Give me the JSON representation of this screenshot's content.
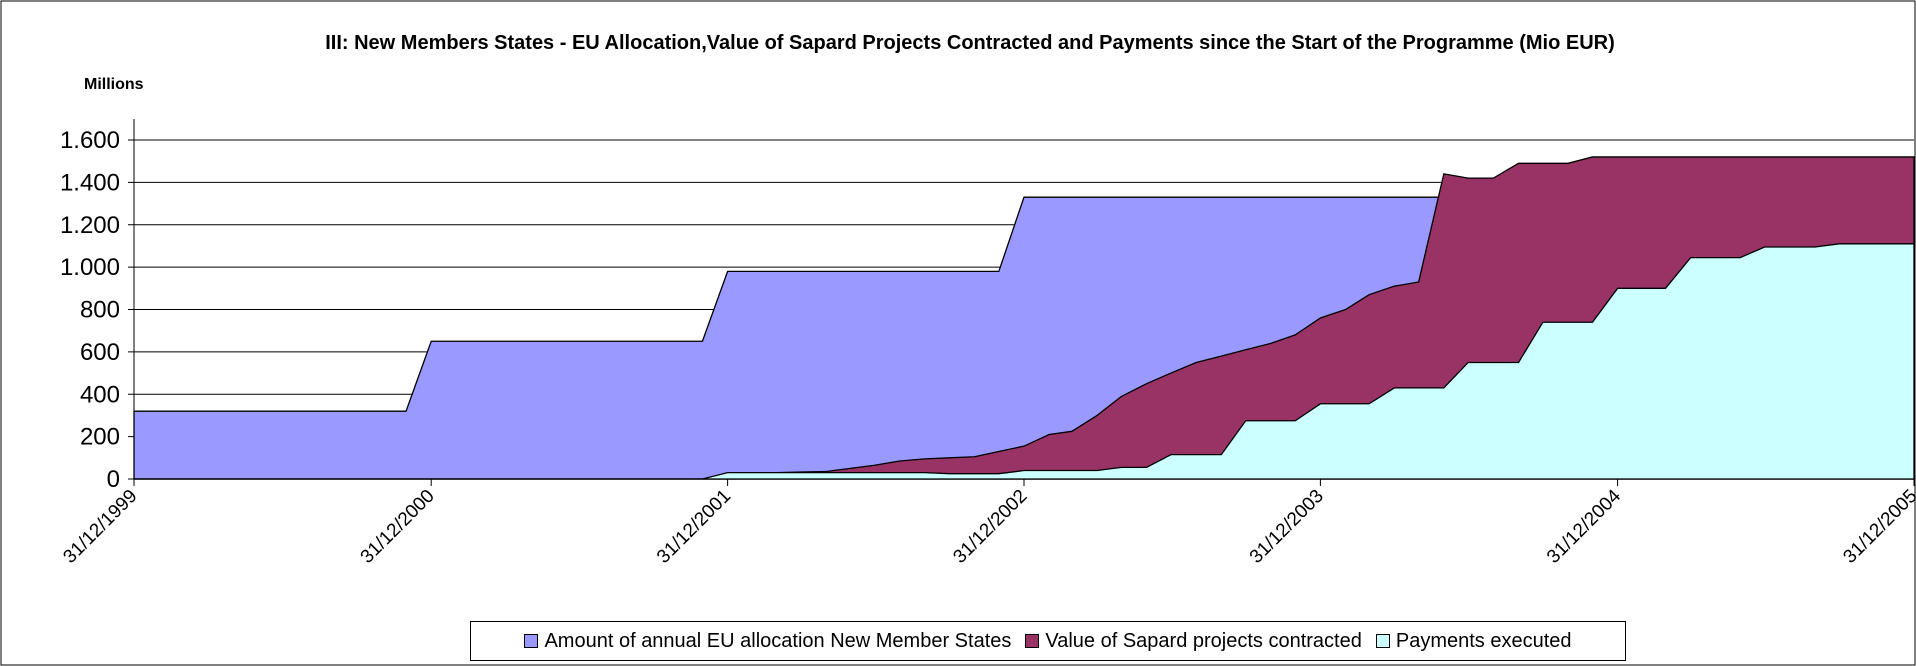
{
  "chart_data": {
    "type": "area",
    "title": "III: New Members States - EU Allocation,Value of Sapard Projects Contracted and Payments since the Start of the Programme (Mio EUR)",
    "y_label": "Millions",
    "x": [
      "31/12/1999",
      "31/01/2000",
      "29/02/2000",
      "31/03/2000",
      "30/04/2000",
      "31/05/2000",
      "30/06/2000",
      "31/07/2000",
      "31/08/2000",
      "30/09/2000",
      "31/10/2000",
      "30/11/2000",
      "31/12/2000",
      "31/01/2001",
      "28/02/2001",
      "31/03/2001",
      "30/04/2001",
      "31/05/2001",
      "30/06/2001",
      "31/07/2001",
      "31/08/2001",
      "30/09/2001",
      "31/10/2001",
      "30/11/2001",
      "31/12/2001",
      "31/01/2002",
      "28/02/2002",
      "31/03/2002",
      "30/04/2002",
      "31/05/2002",
      "30/06/2002",
      "31/07/2002",
      "31/08/2002",
      "30/09/2002",
      "31/10/2002",
      "30/11/2002",
      "31/12/2002",
      "31/01/2003",
      "28/02/2003",
      "31/03/2003",
      "30/04/2003",
      "31/05/2003",
      "30/06/2003",
      "31/07/2003",
      "31/08/2003",
      "30/09/2003",
      "31/10/2003",
      "30/11/2003",
      "31/12/2003",
      "31/01/2004",
      "29/02/2004",
      "31/03/2004",
      "30/04/2004",
      "31/05/2004",
      "30/06/2004",
      "31/07/2004",
      "31/08/2004",
      "30/09/2004",
      "31/10/2004",
      "30/11/2004",
      "31/12/2004",
      "31/01/2005",
      "28/02/2005",
      "31/03/2005",
      "30/04/2005",
      "31/05/2005",
      "30/06/2005",
      "31/07/2005",
      "31/08/2005",
      "30/09/2005",
      "31/10/2005",
      "30/11/2005",
      "31/12/2005"
    ],
    "series": [
      {
        "name": "Amount of annual EU allocation New Member States",
        "color": "#9999ff",
        "values": [
          320,
          320,
          320,
          320,
          320,
          320,
          320,
          320,
          320,
          320,
          320,
          320,
          650,
          650,
          650,
          650,
          650,
          650,
          650,
          650,
          650,
          650,
          650,
          650,
          980,
          980,
          980,
          980,
          980,
          980,
          980,
          980,
          980,
          980,
          980,
          980,
          1330,
          1330,
          1330,
          1330,
          1330,
          1330,
          1330,
          1330,
          1330,
          1330,
          1330,
          1330,
          1330,
          1330,
          1330,
          1330,
          1330,
          1330,
          1330,
          1330,
          1330,
          1330,
          1330,
          1330,
          1330,
          1330,
          1330,
          1330,
          1330,
          1330,
          1330,
          1330,
          1330,
          1330,
          1330,
          1330,
          1330
        ]
      },
      {
        "name": "Value of Sapard projects contracted",
        "color": "#993366",
        "values": [
          0,
          0,
          0,
          0,
          0,
          0,
          0,
          0,
          0,
          0,
          0,
          0,
          0,
          0,
          0,
          0,
          0,
          0,
          0,
          0,
          0,
          0,
          0,
          0,
          5,
          30,
          30,
          33,
          35,
          50,
          65,
          85,
          95,
          100,
          105,
          130,
          155,
          210,
          225,
          300,
          390,
          450,
          500,
          550,
          580,
          610,
          640,
          680,
          760,
          800,
          870,
          910,
          930,
          1440,
          1420,
          1420,
          1490,
          1490,
          1490,
          1520,
          1520,
          1520,
          1520,
          1520,
          1520,
          1520,
          1520,
          1520,
          1520,
          1520,
          1520,
          1520,
          1520
        ]
      },
      {
        "name": "Payments executed",
        "color": "#ccffff",
        "values": [
          0,
          0,
          0,
          0,
          0,
          0,
          0,
          0,
          0,
          0,
          0,
          0,
          0,
          0,
          0,
          0,
          0,
          0,
          0,
          0,
          0,
          0,
          0,
          0,
          30,
          30,
          30,
          30,
          30,
          30,
          30,
          30,
          30,
          25,
          25,
          25,
          40,
          40,
          40,
          40,
          55,
          55,
          115,
          115,
          115,
          275,
          275,
          275,
          355,
          355,
          355,
          430,
          430,
          430,
          550,
          550,
          550,
          740,
          740,
          740,
          900,
          900,
          900,
          1045,
          1045,
          1045,
          1095,
          1095,
          1095,
          1110,
          1110,
          1110,
          1110
        ]
      }
    ],
    "xlim": [
      "31/12/1999",
      "31/12/2005"
    ],
    "xticks": [
      "31/12/1999",
      "31/12/2000",
      "31/12/2001",
      "31/12/2002",
      "31/12/2003",
      "31/12/2004",
      "31/12/2005"
    ],
    "ylim": [
      0,
      1600
    ],
    "yticks": [
      {
        "value": 0,
        "label": "0"
      },
      {
        "value": 200,
        "label": "200"
      },
      {
        "value": 400,
        "label": "400"
      },
      {
        "value": 600,
        "label": "600"
      },
      {
        "value": 800,
        "label": "800"
      },
      {
        "value": 1000,
        "label": "1.000"
      },
      {
        "value": 1200,
        "label": "1.200"
      },
      {
        "value": 1400,
        "label": "1.400"
      },
      {
        "value": 1600,
        "label": "1.600"
      }
    ],
    "grid": true,
    "legend": "bottom"
  }
}
